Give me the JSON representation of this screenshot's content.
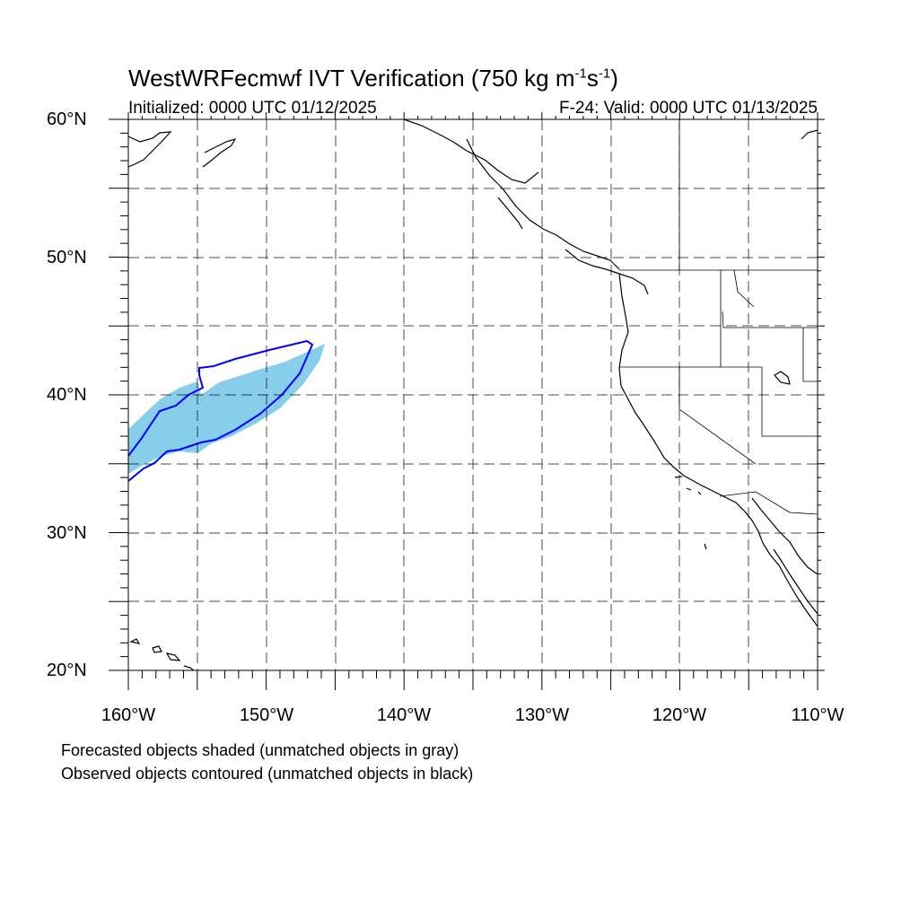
{
  "title": {
    "main": "WestWRFecmwf IVT Verification (750 kg m",
    "exp1": "-1",
    "mid": "s",
    "exp2": "-1",
    "close": ")"
  },
  "subtitle_left": "Initialized: 0000 UTC 01/12/2025",
  "subtitle_right": "F-24: Valid: 0000 UTC 01/13/2025",
  "lat_labels": [
    "60°N",
    "50°N",
    "40°N",
    "30°N",
    "20°N"
  ],
  "lon_labels": [
    "160°W",
    "150°W",
    "140°W",
    "130°W",
    "120°W",
    "110°W"
  ],
  "notes": [
    "Forecasted objects shaded (unmatched objects in gray)",
    "Observed objects contoured (unmatched objects in black)"
  ],
  "map": {
    "lon_range": [
      -160,
      -110
    ],
    "lat_range": [
      20,
      60
    ],
    "grid_interval_deg": 5,
    "forecast_fill_color": "#87ceeb",
    "observed_contour_color": "#0000ff",
    "coastline_color": "#000000"
  }
}
